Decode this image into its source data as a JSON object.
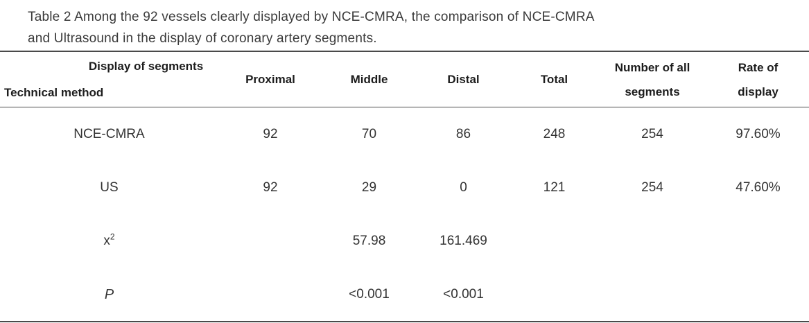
{
  "caption": {
    "line1": "Table 2 Among the 92 vessels clearly displayed by NCE-CMRA, the comparison of NCE-CMRA",
    "line2": "and Ultrasound in the display of coronary artery segments."
  },
  "table": {
    "header": {
      "col1_top": "Display of segments",
      "col1_bottom": "Technical method",
      "columns": [
        "Proximal",
        "Middle",
        "Distal",
        "Total"
      ],
      "segments_line1": "Number of all",
      "segments_line2": "segments",
      "rate_line1": "Rate of",
      "rate_line2": "display"
    },
    "rows": [
      {
        "method": "NCE-CMRA",
        "method_sup": "",
        "proximal": "92",
        "middle": "70",
        "distal": "86",
        "total": "248",
        "segments": "254",
        "rate": "97.60%"
      },
      {
        "method": "US",
        "method_sup": "",
        "proximal": "92",
        "middle": "29",
        "distal": "0",
        "total": "121",
        "segments": "254",
        "rate": "47.60%"
      },
      {
        "method": "x",
        "method_sup": "2",
        "proximal": "",
        "middle": "57.98",
        "distal": "161.469",
        "total": "",
        "segments": "",
        "rate": ""
      },
      {
        "method": "P",
        "method_sup": "",
        "proximal": "",
        "middle": "<0.001",
        "distal": "<0.001",
        "total": "",
        "segments": "",
        "rate": ""
      }
    ]
  }
}
